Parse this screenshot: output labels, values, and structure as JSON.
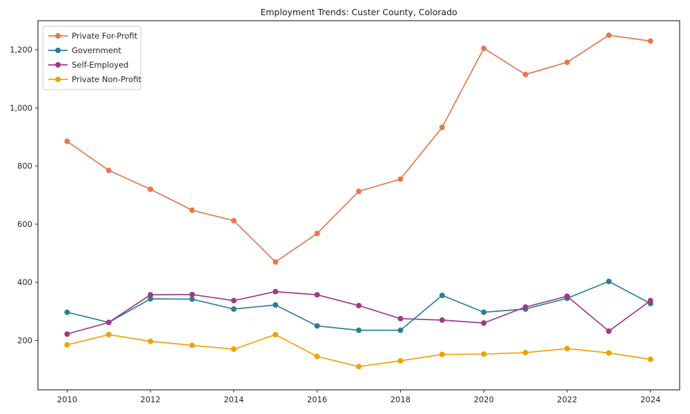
{
  "figure": {
    "background": "#ffffff",
    "frame_color": "#000000",
    "tick_color": "#262626"
  },
  "chart_data": {
    "type": "line",
    "title": "Employment Trends: Custer County, Colorado",
    "x": [
      2010,
      2011,
      2012,
      2013,
      2014,
      2015,
      2016,
      2017,
      2018,
      2019,
      2020,
      2021,
      2022,
      2023,
      2024
    ],
    "xlim": [
      2009.3,
      2024.7
    ],
    "ylim": [
      30,
      1300
    ],
    "grid": false,
    "xticks": [
      {
        "value": 2010,
        "label": "2010"
      },
      {
        "value": 2012,
        "label": "2012"
      },
      {
        "value": 2014,
        "label": "2014"
      },
      {
        "value": 2016,
        "label": "2016"
      },
      {
        "value": 2018,
        "label": "2018"
      },
      {
        "value": 2020,
        "label": "2020"
      },
      {
        "value": 2022,
        "label": "2022"
      },
      {
        "value": 2024,
        "label": "2024"
      }
    ],
    "yticks": [
      {
        "value": 200,
        "label": "200"
      },
      {
        "value": 400,
        "label": "400"
      },
      {
        "value": 600,
        "label": "600"
      },
      {
        "value": 800,
        "label": "800"
      },
      {
        "value": 1000,
        "label": "1,000"
      },
      {
        "value": 1200,
        "label": "1,200"
      }
    ],
    "legend": {
      "position": "upper left",
      "entries": [
        "Private For-Profit",
        "Government",
        "Self-Employed",
        "Private Non-Profit"
      ]
    },
    "series": [
      {
        "name": "Private For-Profit",
        "color": "#e8774e",
        "values": [
          885,
          785,
          720,
          648,
          612,
          470,
          568,
          713,
          755,
          933,
          1205,
          1115,
          1157,
          1250,
          1230
        ]
      },
      {
        "name": "Government",
        "color": "#2b7f93",
        "values": [
          297,
          262,
          343,
          342,
          308,
          322,
          250,
          235,
          235,
          355,
          297,
          308,
          345,
          403,
          327
        ]
      },
      {
        "name": "Self-Employed",
        "color": "#9e3a87",
        "values": [
          222,
          262,
          357,
          358,
          337,
          368,
          357,
          320,
          275,
          270,
          260,
          315,
          352,
          232,
          337
        ]
      },
      {
        "name": "Private Non-Profit",
        "color": "#f0a202",
        "values": [
          185,
          220,
          197,
          183,
          170,
          220,
          145,
          110,
          130,
          152,
          153,
          158,
          172,
          157,
          135
        ]
      }
    ]
  }
}
